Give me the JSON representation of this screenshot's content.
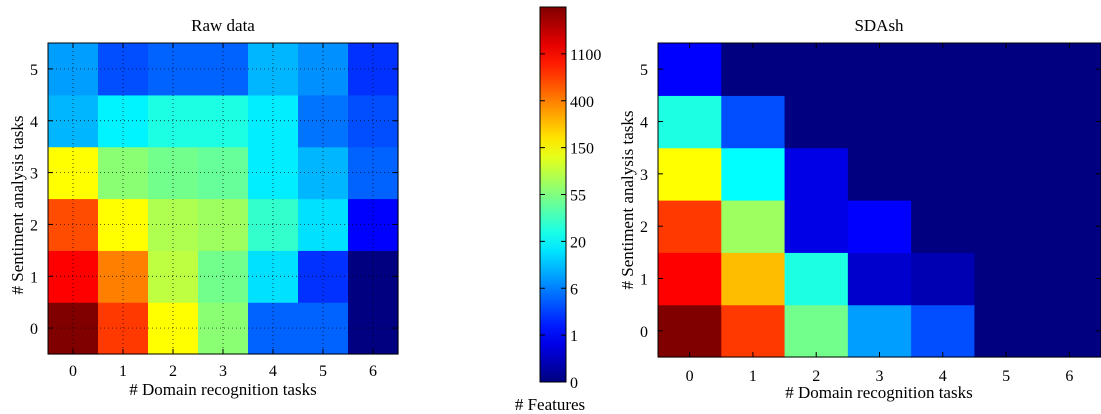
{
  "chart_data": [
    {
      "type": "heatmap",
      "title": "Raw data",
      "xlabel": "# Domain recognition tasks",
      "ylabel": "# Sentiment analysis tasks",
      "x_categories": [
        "0",
        "1",
        "2",
        "3",
        "4",
        "5",
        "6"
      ],
      "y_categories": [
        "0",
        "1",
        "2",
        "3",
        "4",
        "5"
      ],
      "grid": true,
      "values": [
        [
          3000,
          700,
          150,
          60,
          4,
          4,
          0
        ],
        [
          1100,
          400,
          90,
          50,
          15,
          2,
          0
        ],
        [
          600,
          150,
          80,
          70,
          30,
          15,
          1
        ],
        [
          150,
          60,
          50,
          45,
          17,
          10,
          4
        ],
        [
          10,
          18,
          25,
          25,
          17,
          5,
          3
        ],
        [
          8,
          3,
          4,
          4,
          10,
          7,
          2
        ]
      ]
    },
    {
      "type": "heatmap",
      "title": "SDAsh",
      "xlabel": "# Domain recognition tasks",
      "ylabel": "# Sentiment analysis tasks",
      "x_categories": [
        "0",
        "1",
        "2",
        "3",
        "4",
        "5",
        "6"
      ],
      "y_categories": [
        "0",
        "1",
        "2",
        "3",
        "4",
        "5"
      ],
      "grid": false,
      "values": [
        [
          3000,
          700,
          50,
          8,
          3,
          0,
          0
        ],
        [
          1100,
          250,
          25,
          0.6,
          0.4,
          0,
          0
        ],
        [
          700,
          70,
          0.8,
          1,
          0,
          0,
          0
        ],
        [
          150,
          20,
          0.8,
          0,
          0,
          0,
          0
        ],
        [
          25,
          3,
          0,
          0,
          0,
          0,
          0
        ],
        [
          1,
          0,
          0,
          0,
          0,
          0,
          0
        ]
      ]
    }
  ],
  "colorbar": {
    "label": "# Features",
    "colormap": "jet",
    "scale": "log",
    "tick_labels": [
      "0",
      "1",
      "6",
      "20",
      "55",
      "150",
      "400",
      "1100"
    ],
    "tick_values": [
      0,
      1,
      6,
      20,
      55,
      150,
      400,
      1100
    ],
    "max_value": 3000
  }
}
